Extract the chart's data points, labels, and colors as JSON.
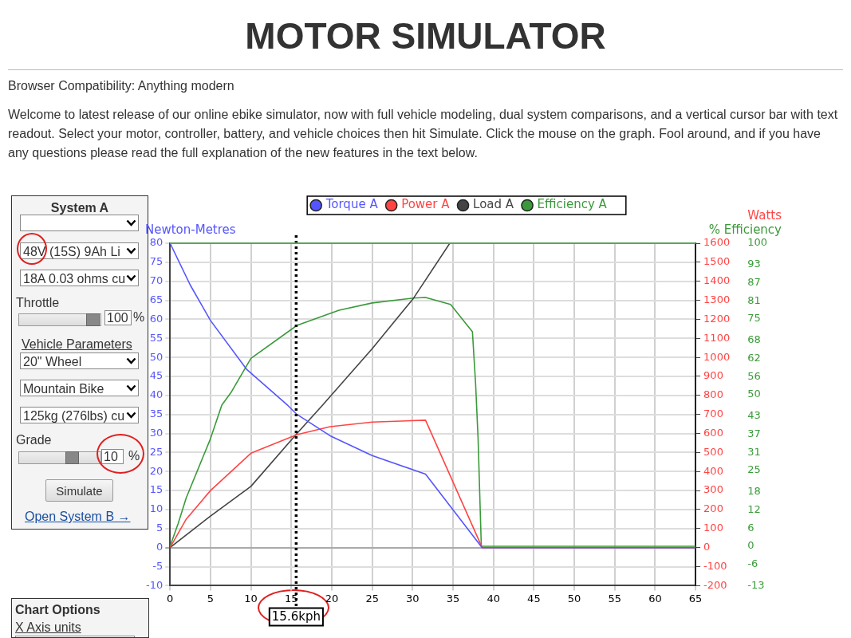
{
  "chart_data": {
    "type": "line",
    "title": "MOTOR SIMULATOR",
    "ylabel": "Newton-Metres",
    "y2label": "Watts",
    "y3label": "% Efficiency",
    "xlim": [
      0,
      65
    ],
    "xticks": [
      0,
      5,
      10,
      15,
      20,
      25,
      30,
      35,
      40,
      45,
      50,
      55,
      60,
      65
    ],
    "ylim": [
      -10,
      80
    ],
    "yticks": [
      -10,
      -5,
      0,
      5,
      10,
      15,
      20,
      25,
      30,
      35,
      40,
      45,
      50,
      55,
      60,
      65,
      70,
      75,
      80
    ],
    "y2lim": [
      -200,
      1600
    ],
    "y2ticks": [
      -200,
      -100,
      0,
      100,
      200,
      300,
      400,
      500,
      600,
      700,
      800,
      900,
      1000,
      1100,
      1200,
      1300,
      1400,
      1500,
      1600
    ],
    "y3lim": [
      -13,
      100
    ],
    "y3ticks": [
      -13,
      -6,
      0,
      6,
      12,
      18,
      25,
      31,
      37,
      43,
      50,
      56,
      62,
      68,
      75,
      81,
      87,
      93,
      100
    ],
    "grid": true,
    "legend": "top",
    "marker": "none",
    "line_style": "solid",
    "series": [
      {
        "name": "Torque A",
        "color": "#5555ff",
        "x": [
          0,
          2.5,
          5,
          9.5,
          14.6,
          15.7,
          19.8,
          25,
          31.6,
          38.6,
          65
        ],
        "values": [
          80,
          69,
          59.7,
          46.8,
          37.3,
          35,
          29.4,
          24.2,
          19.3,
          0,
          0
        ]
      },
      {
        "name": "Power A",
        "color": "#ff4444",
        "axis": "y2",
        "x": [
          0,
          2,
          5,
          10,
          15.7,
          19.8,
          25,
          31.6,
          38.6,
          65
        ],
        "values": [
          0,
          150,
          300,
          496,
          594,
          636,
          660,
          670,
          0,
          0
        ]
      },
      {
        "name": "Load A",
        "color": "#444444",
        "axis": "y2",
        "x": [
          0,
          5,
          10,
          15.7,
          18.8,
          25,
          30.1,
          34.6
        ],
        "values": [
          0,
          166,
          322,
          600,
          746,
          1046,
          1310,
          1600
        ]
      },
      {
        "name": "Efficiency A",
        "color": "#3a9a3a",
        "axis": "y3",
        "x": [
          0,
          1,
          2,
          5,
          6.4,
          7.6,
          10,
          15.7,
          20.9,
          25,
          30.1,
          31.6,
          34.7,
          37.4,
          37.8,
          38.1,
          38.5,
          65
        ],
        "values": [
          0,
          7.5,
          16,
          35.5,
          46.6,
          51,
          62,
          72.9,
          77.9,
          80.3,
          81.9,
          82.1,
          79.8,
          70.8,
          53.3,
          35.5,
          0,
          0
        ]
      }
    ],
    "ref_lines": [
      {
        "axis": "x",
        "value": 15.6,
        "label": "15.6kph",
        "line_style": "dotted",
        "color": "#000000"
      },
      {
        "axis": "y",
        "value": 80,
        "color": "#5aa55a",
        "line_style": "solid"
      }
    ],
    "annotations": [
      "Browser Compatibility: Anything modern",
      "Welcome to latest release of our online ebike simulator, now with full vehicle modeling, dual system comparisons, and a vertical cursor bar with text readout. Select your motor, controller, battery, and vehicle choices then hit Simulate. Click the mouse on the graph. Fool around, and if you have any questions please read the full explanation of the new features in the text below.",
      "System A",
      "48V (15S) 9Ah Li",
      "18A 0.03 ohms cu",
      "Throttle",
      "100",
      "%",
      "Vehicle Parameters",
      "20\"  Wheel",
      "Mountain Bike",
      "125kg (276lbs) cu",
      "Grade",
      "10",
      "%",
      "Simulate",
      "Open System B →",
      "Chart Options",
      "X Axis units"
    ]
  }
}
